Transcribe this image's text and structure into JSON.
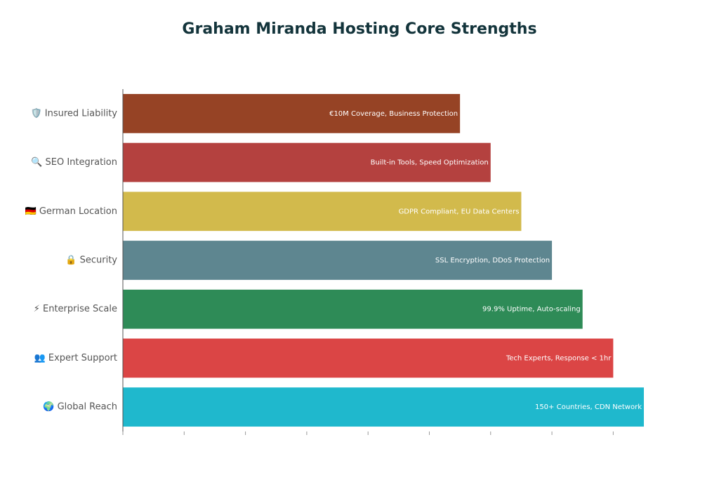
{
  "chart_data": {
    "type": "bar",
    "orientation": "horizontal",
    "title": "Graham Miranda Hosting Core Strengths",
    "categories": [
      "🛡️ Insured Liability",
      "🔍 SEO Integration",
      "🇩🇪 German Location",
      "🔒 Security",
      "⚡ Enterprise Scale",
      "👥 Expert Support",
      "🌍 Global Reach"
    ],
    "values": [
      5.5,
      6,
      6.5,
      7,
      7.5,
      8,
      8.5
    ],
    "annotations": [
      "€10M Coverage, Business Protection",
      "Built-in Tools, Speed Optimization",
      "GDPR Compliant, EU Data Centers",
      "SSL Encryption, DDoS Protection",
      "99.9% Uptime, Auto-scaling",
      "Tech Experts, Response < 1hr",
      "150+ Countries, CDN Network"
    ],
    "colors": [
      "#964325",
      "#b4413f",
      "#d2ba4c",
      "#5e8690",
      "#2e8b57",
      "#db4545",
      "#1fb8cd"
    ],
    "xlim": [
      0,
      8.5
    ],
    "xticks": [
      0,
      1,
      2,
      3,
      4,
      5,
      6,
      7,
      8
    ]
  }
}
